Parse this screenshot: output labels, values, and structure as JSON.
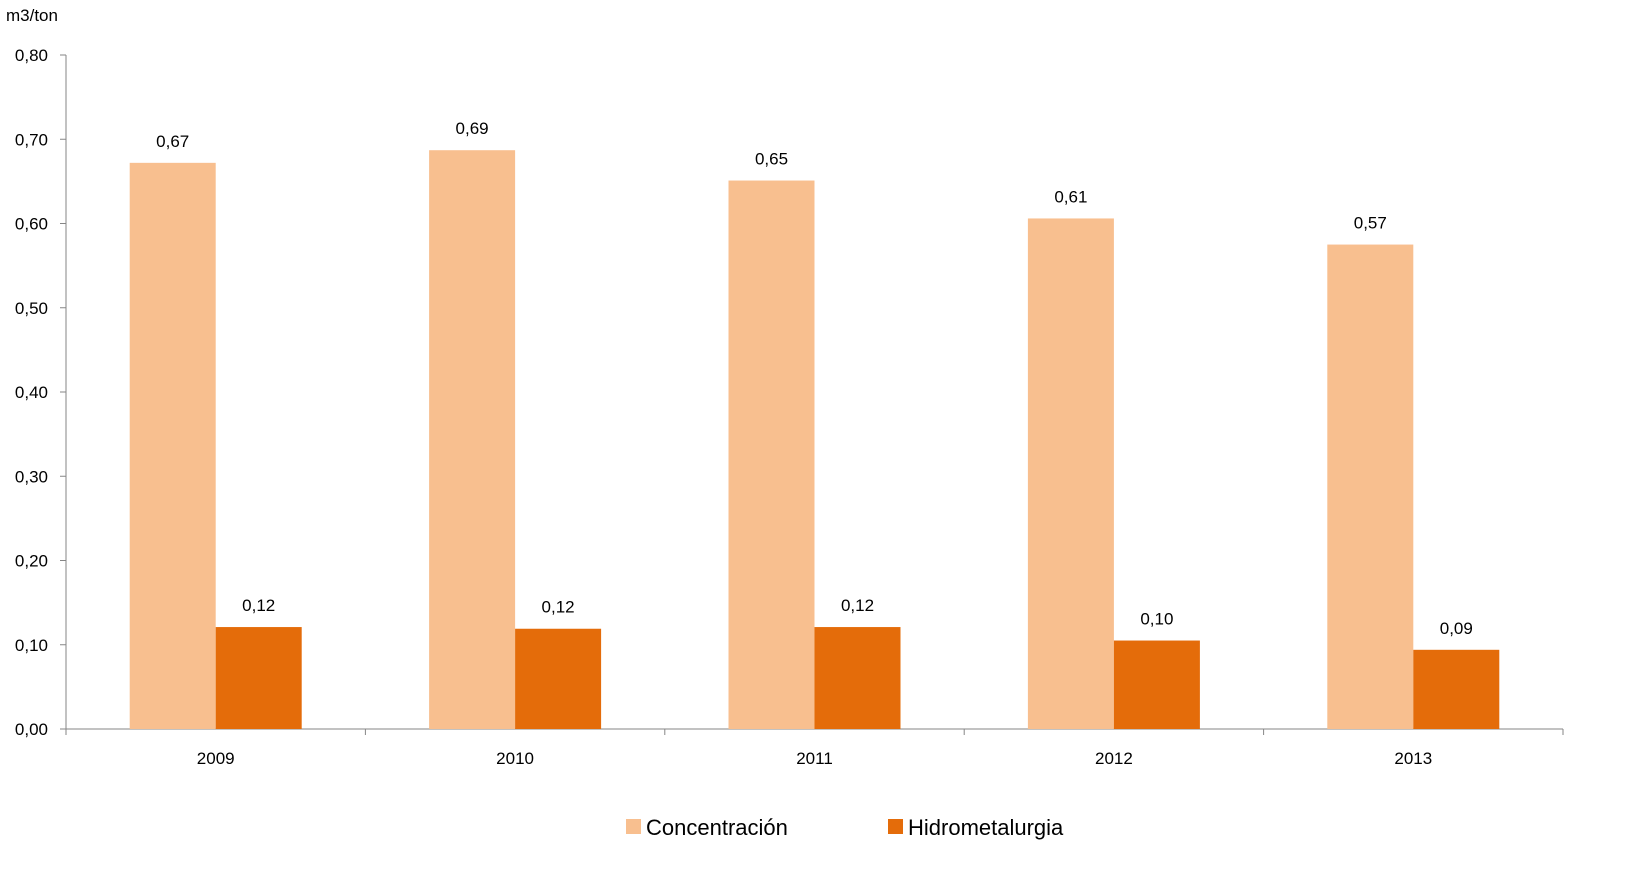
{
  "chart_data": {
    "type": "bar",
    "unit_label": "m3/ton",
    "categories": [
      "2009",
      "2010",
      "2011",
      "2012",
      "2013"
    ],
    "series": [
      {
        "name": "Concentración",
        "color": "#F8BF8F",
        "values": [
          0.672,
          0.687,
          0.651,
          0.606,
          0.575
        ],
        "labels": [
          "0,67",
          "0,69",
          "0,65",
          "0,61",
          "0,57"
        ]
      },
      {
        "name": "Hidrometalurgia",
        "color": "#E46C0A",
        "values": [
          0.121,
          0.119,
          0.121,
          0.105,
          0.094
        ],
        "labels": [
          "0,12",
          "0,12",
          "0,12",
          "0,10",
          "0,09"
        ]
      }
    ],
    "ylim": [
      0,
      0.8
    ],
    "yticks": [
      0,
      0.1,
      0.2,
      0.3,
      0.4,
      0.5,
      0.6,
      0.7,
      0.8
    ],
    "ytick_labels": [
      "0,00",
      "0,10",
      "0,20",
      "0,30",
      "0,40",
      "0,50",
      "0,60",
      "0,70",
      "0,80"
    ],
    "grid": false,
    "legend_position": "bottom"
  }
}
